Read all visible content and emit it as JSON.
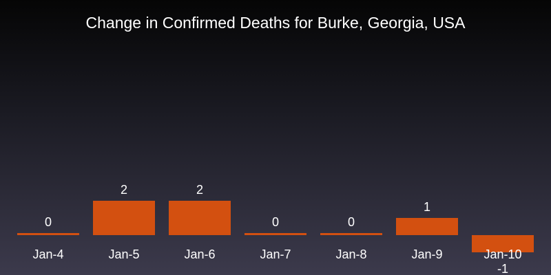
{
  "chart_data": {
    "type": "bar",
    "title": "Change in Confirmed Deaths for Burke, Georgia, USA",
    "categories": [
      "Jan-4",
      "Jan-5",
      "Jan-6",
      "Jan-7",
      "Jan-8",
      "Jan-9",
      "Jan-10"
    ],
    "series": [
      {
        "values": [
          0,
          2,
          2,
          0,
          0,
          1,
          -1
        ]
      }
    ],
    "data_labels": [
      "0",
      "2",
      "2",
      "0",
      "0",
      "1",
      "-1"
    ],
    "xlabel": "",
    "ylabel": "",
    "ylim": [
      -1,
      2
    ],
    "grid": false,
    "legend": "none",
    "colors": {
      "bar": "#d35010",
      "text": "#ffffff"
    }
  }
}
